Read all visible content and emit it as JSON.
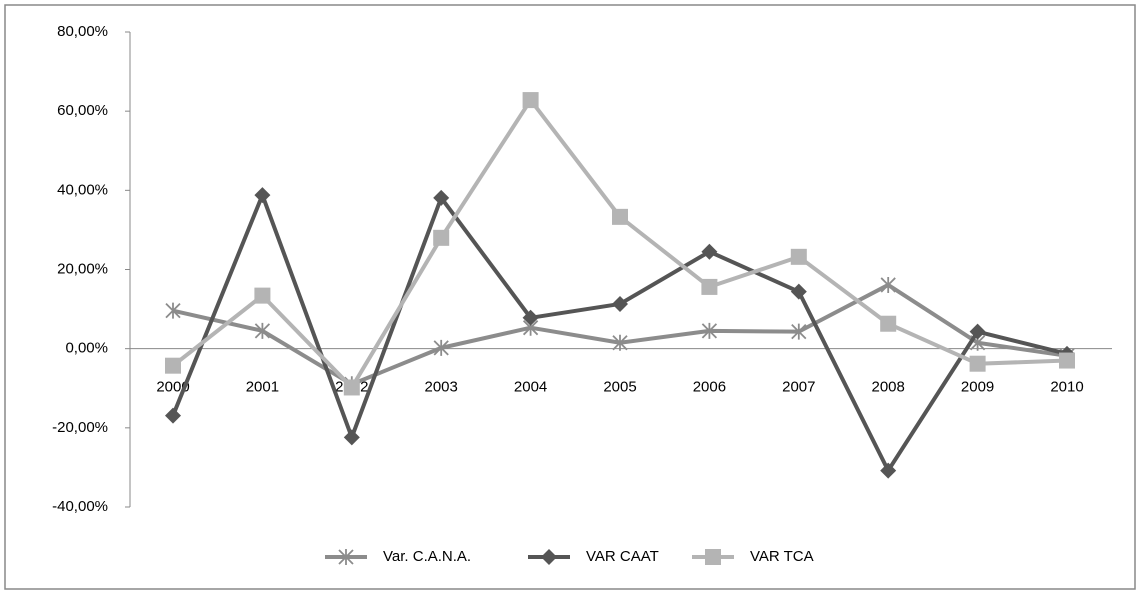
{
  "chart_data": {
    "type": "line",
    "categories": [
      "2000",
      "2001",
      "2002",
      "2003",
      "2004",
      "2005",
      "2006",
      "2007",
      "2008",
      "2009",
      "2010"
    ],
    "series": [
      {
        "name": "Var. C.A.N.A.",
        "color": "#8c8c8c",
        "marker": "asterisk",
        "values": [
          9.6,
          4.5,
          -9,
          0.2,
          5.3,
          1.5,
          4.5,
          4.3,
          16.1,
          1.5,
          -1.8
        ]
      },
      {
        "name": "VAR CAAT",
        "color": "#555555",
        "marker": "diamond",
        "values": [
          -16.9,
          38.8,
          -22.4,
          38.1,
          7.8,
          11.3,
          24.5,
          14.4,
          -30.8,
          4.3,
          -1.3
        ]
      },
      {
        "name": "VAR TCA",
        "color": "#b4b4b4",
        "marker": "square",
        "values": [
          -4.3,
          13.4,
          -9.8,
          28,
          62.8,
          33.3,
          15.6,
          23.2,
          6.3,
          -3.8,
          -3
        ]
      }
    ],
    "ylim": [
      -40,
      80
    ],
    "yticks": [
      {
        "value": -40,
        "label": "-40,00%"
      },
      {
        "value": -20,
        "label": "-20,00%"
      },
      {
        "value": 0,
        "label": "0,00%"
      },
      {
        "value": 20,
        "label": "20,00%"
      },
      {
        "value": 40,
        "label": "40,00%"
      },
      {
        "value": 60,
        "label": "60,00%"
      },
      {
        "value": 80,
        "label": "80,00%"
      }
    ],
    "legend": "bottom"
  }
}
